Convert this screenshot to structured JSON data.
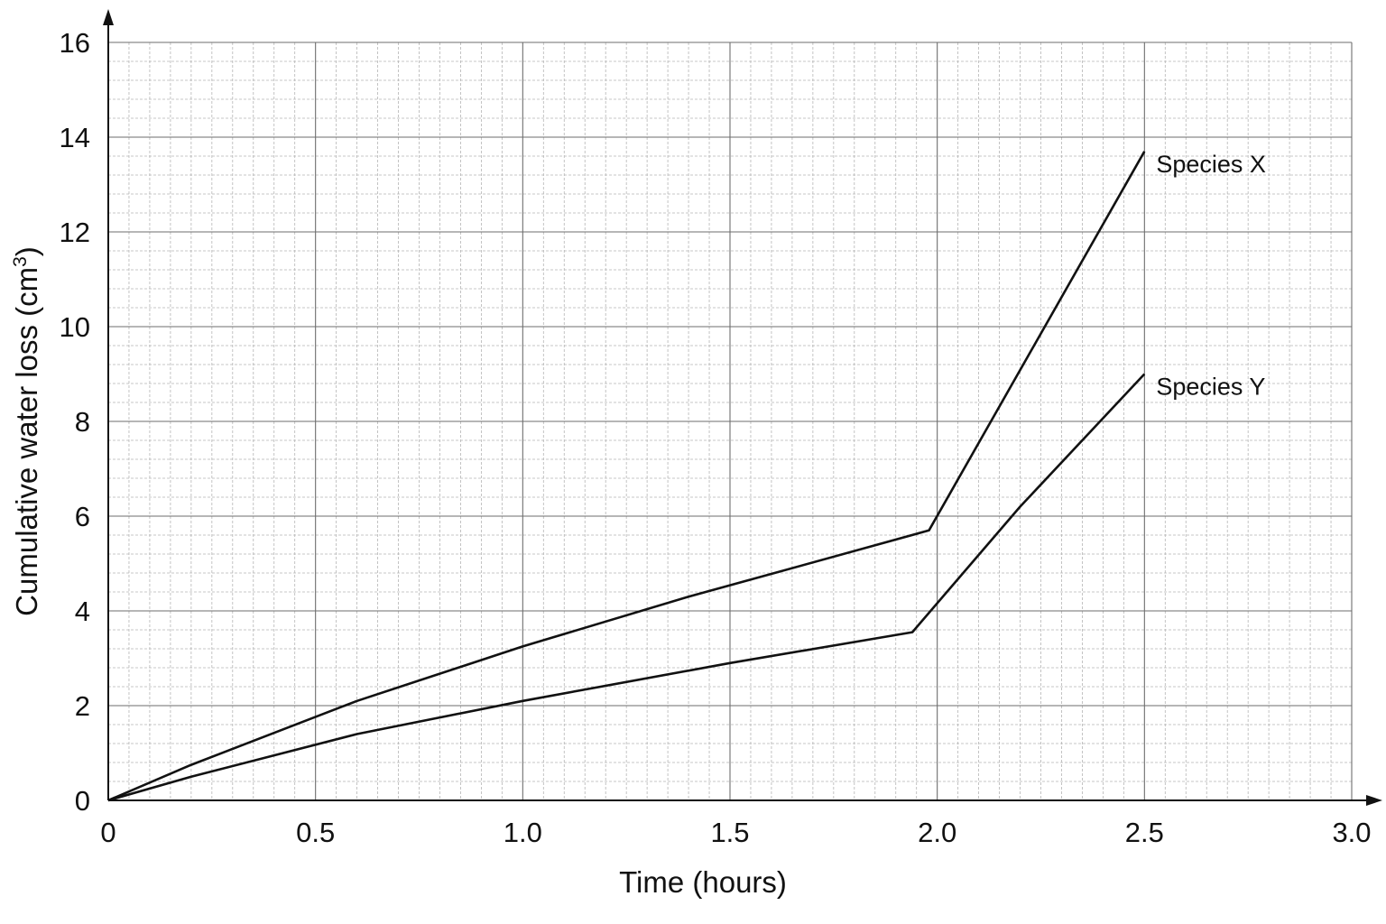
{
  "chart_data": {
    "type": "line",
    "xlabel": "Time (hours)",
    "ylabel": "Cumulative water loss (cm",
    "ylabel_superscript": "3",
    "ylabel_close": ")",
    "xlim": [
      0,
      3.0
    ],
    "ylim": [
      0,
      16
    ],
    "x_ticks": [
      0,
      0.5,
      1.0,
      1.5,
      2.0,
      2.5,
      3.0
    ],
    "x_tick_labels": [
      "0",
      "0.5",
      "1.0",
      "1.5",
      "2.0",
      "2.5",
      "3.0"
    ],
    "y_ticks": [
      0,
      2,
      4,
      6,
      8,
      10,
      12,
      14,
      16
    ],
    "y_tick_labels": [
      "0",
      "2",
      "4",
      "6",
      "8",
      "10",
      "12",
      "14",
      "16"
    ],
    "grid": true,
    "minor_grid_per_major_x": 10,
    "minor_grid_per_major_y": 5,
    "series": [
      {
        "name": "Species X",
        "x": [
          0,
          0.2,
          0.6,
          1.0,
          1.4,
          1.98,
          2.5
        ],
        "y": [
          0,
          0.75,
          2.1,
          3.25,
          4.3,
          5.7,
          13.7
        ]
      },
      {
        "name": "Species Y",
        "x": [
          0,
          0.2,
          0.6,
          1.0,
          1.5,
          1.94,
          2.2,
          2.5
        ],
        "y": [
          0,
          0.5,
          1.4,
          2.1,
          2.9,
          3.55,
          6.2,
          9.0
        ]
      }
    ]
  }
}
